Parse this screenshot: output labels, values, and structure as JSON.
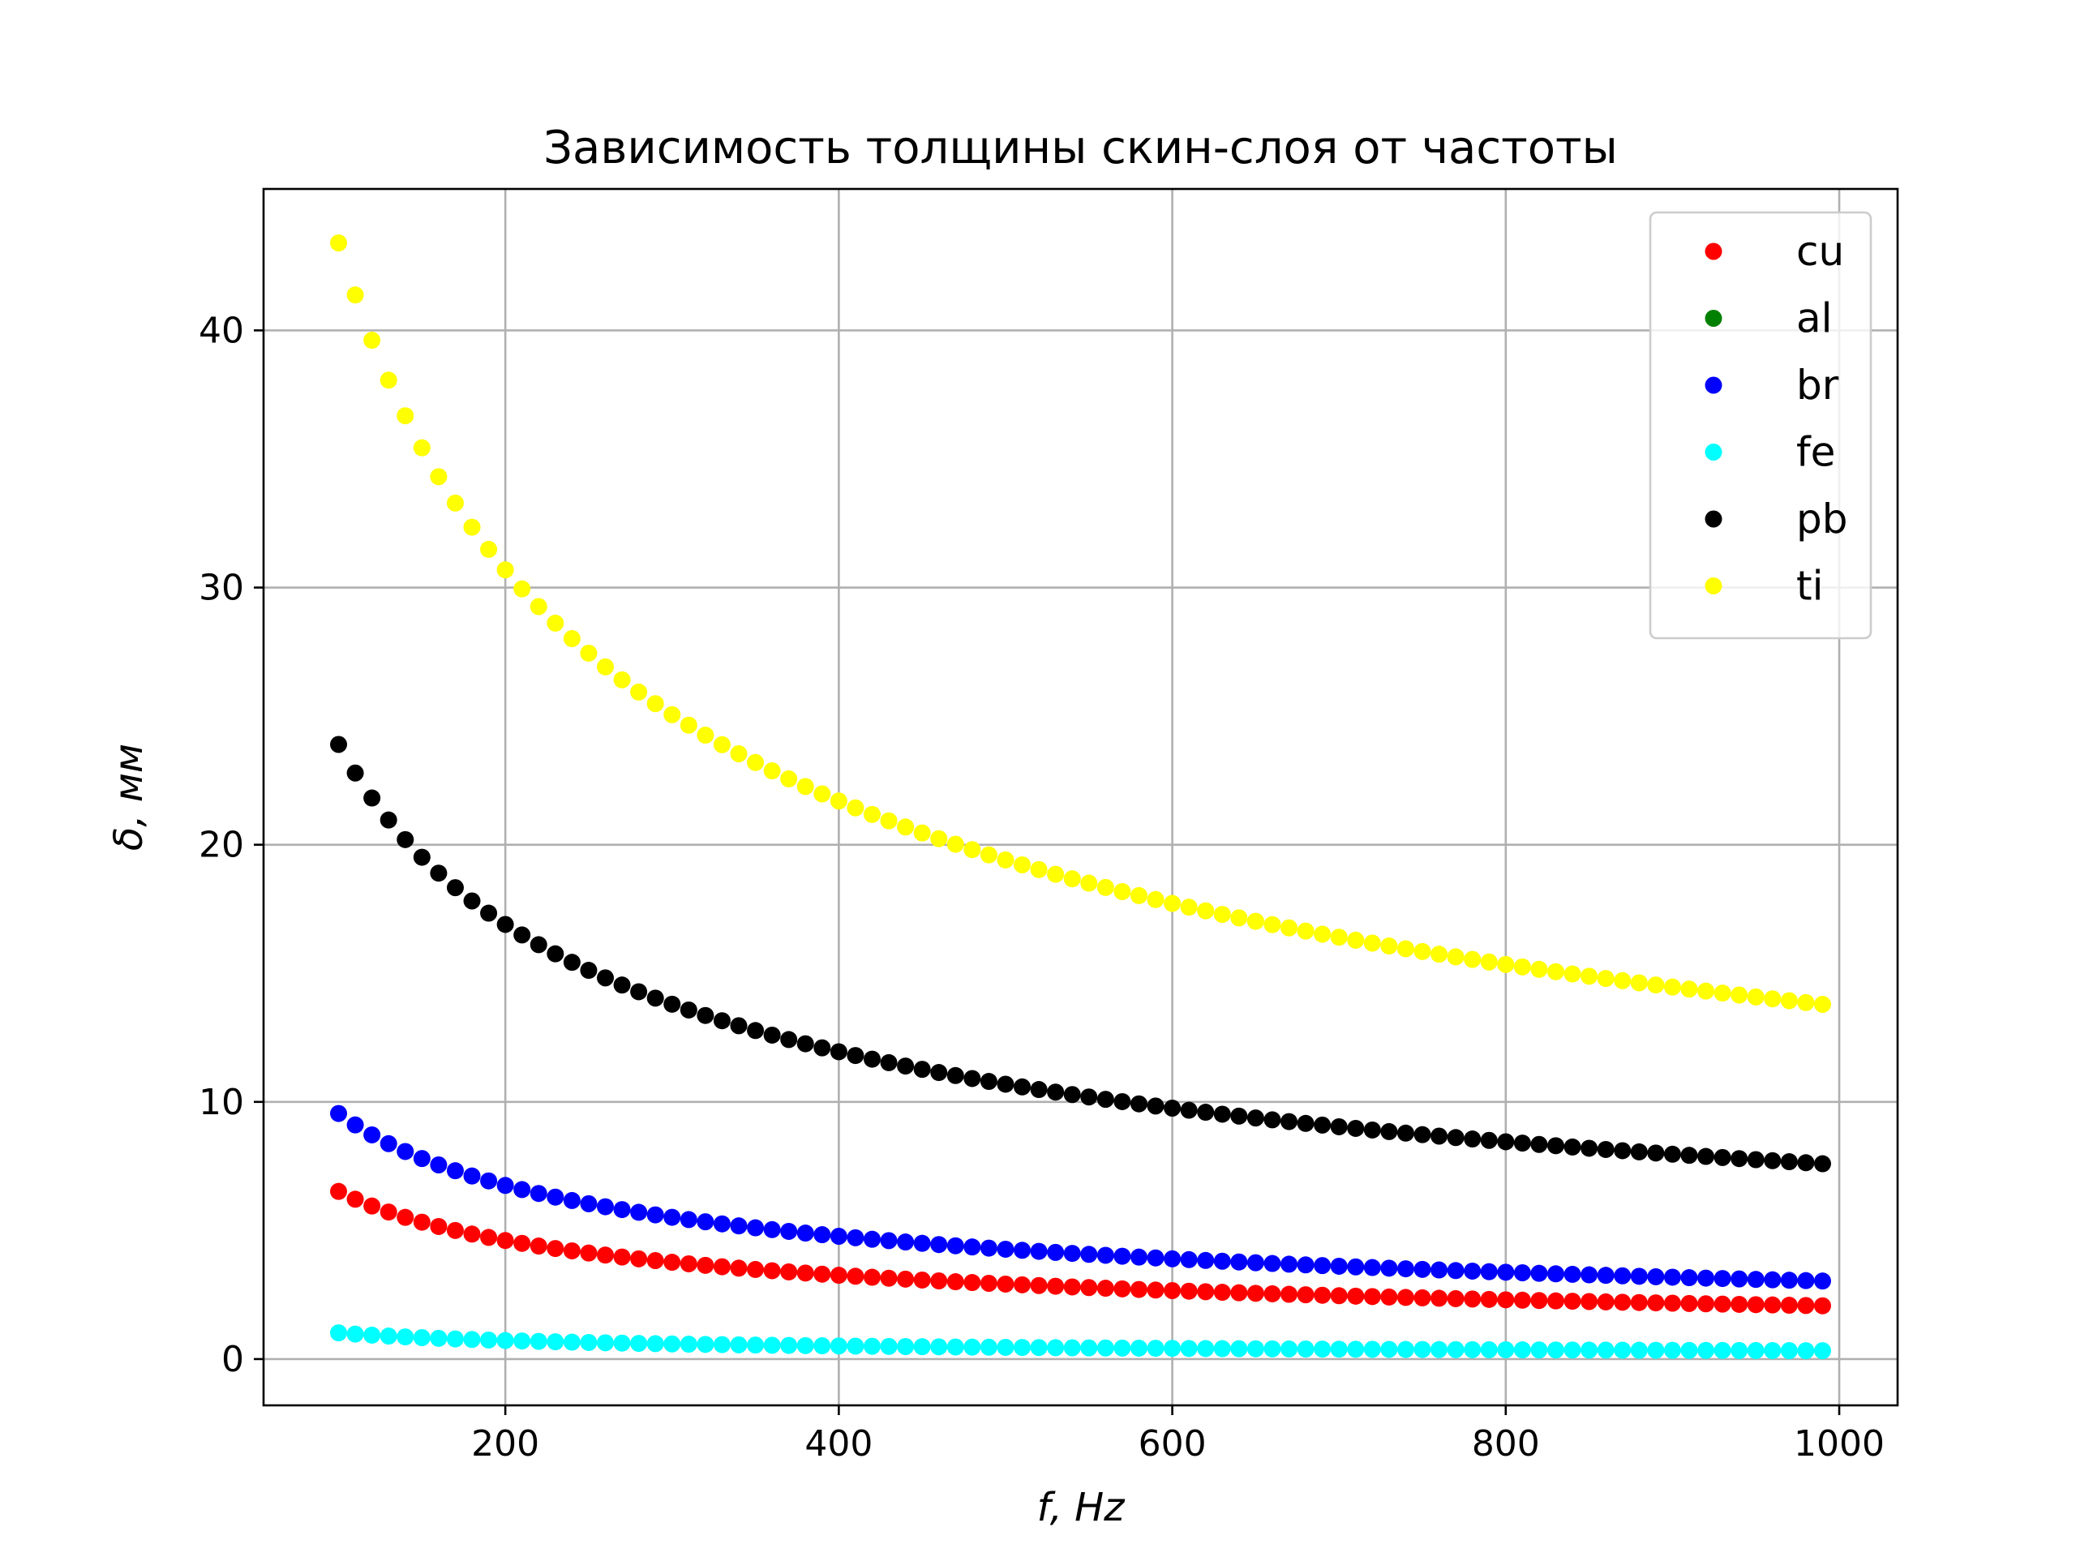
{
  "chart_data": {
    "type": "scatter",
    "title": "Зависимость толщины скин-слоя от частоты",
    "xlabel": "f, Hz",
    "ylabel": "δ, мм",
    "xlim": [
      55,
      1035
    ],
    "ylim": [
      -1.8,
      45.5
    ],
    "xticks": [
      200,
      400,
      600,
      800,
      1000
    ],
    "yticks": [
      0,
      10,
      20,
      30,
      40
    ],
    "grid": true,
    "legend_position": "top-right",
    "x": {
      "start": 100,
      "stop": 990,
      "step": 10
    },
    "series": [
      {
        "name": "cu",
        "color": "#ff0000",
        "value_at_100": 6.52,
        "law": "inverse-sqrt"
      },
      {
        "name": "al",
        "color": "#008000",
        "value_at_100": null,
        "law": "inverse-sqrt"
      },
      {
        "name": "br",
        "color": "#0000ff",
        "value_at_100": 9.55,
        "law": "inverse-sqrt"
      },
      {
        "name": "fe",
        "color": "#00ffff",
        "value_at_100": 1.02,
        "law": "inverse-sqrt"
      },
      {
        "name": "pb",
        "color": "#000000",
        "value_at_100": 23.9,
        "law": "inverse-sqrt"
      },
      {
        "name": "ti",
        "color": "#ffff00",
        "value_at_100": 43.4,
        "law": "inverse-sqrt"
      }
    ]
  }
}
